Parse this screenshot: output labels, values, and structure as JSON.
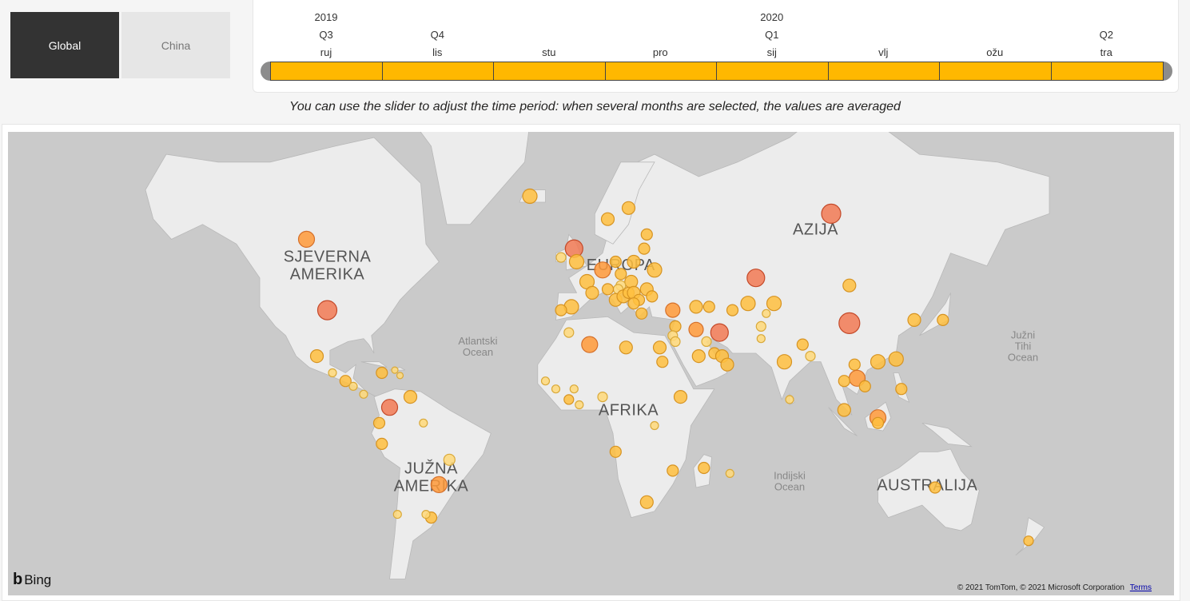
{
  "filters": {
    "global_label": "Global",
    "china_label": "China",
    "selected": "Global"
  },
  "timeline": {
    "years": [
      {
        "label": "2019",
        "month_index": 0
      },
      {
        "label": "2020",
        "month_index": 4
      }
    ],
    "quarters": [
      {
        "label": "Q3",
        "month_index": 0
      },
      {
        "label": "Q4",
        "month_index": 1
      },
      {
        "label": "Q1",
        "month_index": 4
      },
      {
        "label": "Q2",
        "month_index": 7
      }
    ],
    "months": [
      "ruj",
      "lis",
      "stu",
      "pro",
      "sij",
      "vlj",
      "ožu",
      "tra"
    ],
    "selected_range": [
      "ruj",
      "tra"
    ],
    "accent_color": "#ffb800"
  },
  "hint": "You can use the slider to adjust the time period: when several months are selected, the values are averaged",
  "map": {
    "continents": [
      {
        "label_lines": [
          "SJEVERNA",
          "AMERIKA"
        ],
        "lon": -98,
        "lat": 52
      },
      {
        "label_lines": [
          "EUROPA"
        ],
        "lon": 15,
        "lat": 50
      },
      {
        "label_lines": [
          "AZIJA"
        ],
        "lon": 90,
        "lat": 58
      },
      {
        "label_lines": [
          "AFRIKA"
        ],
        "lon": 18,
        "lat": 2
      },
      {
        "label_lines": [
          "JUŽNA",
          "AMERIKA"
        ],
        "lon": -58,
        "lat": -20
      },
      {
        "label_lines": [
          "AUSTRALIJA"
        ],
        "lon": 133,
        "lat": -26
      }
    ],
    "oceans": [
      {
        "label_lines": [
          "Atlantski",
          "Ocean"
        ],
        "lon": -40,
        "lat": 28
      },
      {
        "label_lines": [
          "Južni",
          "Tihi",
          "Ocean"
        ],
        "lon": -180,
        "lat": 30
      },
      {
        "label_lines": [
          "Indijski",
          "Ocean"
        ],
        "lon": 80,
        "lat": -22
      }
    ],
    "bubbles": [
      {
        "lon": -106,
        "lat": 57,
        "level": 2,
        "size": 10
      },
      {
        "lon": -98,
        "lat": 39,
        "level": 3,
        "size": 12
      },
      {
        "lon": -102,
        "lat": 24,
        "level": 1,
        "size": 8
      },
      {
        "lon": -96,
        "lat": 18,
        "level": 0,
        "size": 5
      },
      {
        "lon": -91,
        "lat": 15,
        "level": 1,
        "size": 7
      },
      {
        "lon": -88,
        "lat": 13,
        "level": 0,
        "size": 5
      },
      {
        "lon": -84,
        "lat": 10,
        "level": 0,
        "size": 5
      },
      {
        "lon": -77,
        "lat": 18,
        "level": 1,
        "size": 7
      },
      {
        "lon": -72,
        "lat": 19,
        "level": 0,
        "size": 4
      },
      {
        "lon": -70,
        "lat": 17,
        "level": 0,
        "size": 4
      },
      {
        "lon": -66,
        "lat": 9,
        "level": 1,
        "size": 8
      },
      {
        "lon": -74,
        "lat": 5,
        "level": 3,
        "size": 10
      },
      {
        "lon": -78,
        "lat": -1,
        "level": 1,
        "size": 7
      },
      {
        "lon": -77,
        "lat": -9,
        "level": 1,
        "size": 7
      },
      {
        "lon": -61,
        "lat": -1,
        "level": 0,
        "size": 5
      },
      {
        "lon": -51,
        "lat": -15,
        "level": 0,
        "size": 7
      },
      {
        "lon": -55,
        "lat": -24,
        "level": 2,
        "size": 10
      },
      {
        "lon": -58,
        "lat": -35,
        "level": 1,
        "size": 7
      },
      {
        "lon": -71,
        "lat": -34,
        "level": 0,
        "size": 5
      },
      {
        "lon": -60,
        "lat": -34,
        "level": 0,
        "size": 5
      },
      {
        "lon": -20,
        "lat": 65,
        "level": 1,
        "size": 9
      },
      {
        "lon": -3,
        "lat": 55,
        "level": 3,
        "size": 11
      },
      {
        "lon": 10,
        "lat": 61,
        "level": 1,
        "size": 8
      },
      {
        "lon": 18,
        "lat": 63,
        "level": 1,
        "size": 8
      },
      {
        "lon": -8,
        "lat": 53,
        "level": 0,
        "size": 6
      },
      {
        "lon": -2,
        "lat": 52,
        "level": 1,
        "size": 9
      },
      {
        "lon": 2,
        "lat": 47,
        "level": 1,
        "size": 9
      },
      {
        "lon": 8,
        "lat": 50,
        "level": 2,
        "size": 10
      },
      {
        "lon": 13,
        "lat": 52,
        "level": 1,
        "size": 7
      },
      {
        "lon": 20,
        "lat": 52,
        "level": 1,
        "size": 8
      },
      {
        "lon": 25,
        "lat": 58,
        "level": 1,
        "size": 7
      },
      {
        "lon": 24,
        "lat": 55,
        "level": 1,
        "size": 7
      },
      {
        "lon": 28,
        "lat": 50,
        "level": 1,
        "size": 9
      },
      {
        "lon": 19,
        "lat": 47,
        "level": 1,
        "size": 8
      },
      {
        "lon": 15,
        "lat": 49,
        "level": 1,
        "size": 7
      },
      {
        "lon": 15,
        "lat": 46,
        "level": 0,
        "size": 6
      },
      {
        "lon": 14,
        "lat": 45,
        "level": 0,
        "size": 6
      },
      {
        "lon": 10,
        "lat": 45,
        "level": 1,
        "size": 7
      },
      {
        "lon": 4,
        "lat": 44,
        "level": 1,
        "size": 8
      },
      {
        "lon": -4,
        "lat": 40,
        "level": 1,
        "size": 9
      },
      {
        "lon": -8,
        "lat": 39,
        "level": 1,
        "size": 7
      },
      {
        "lon": 13,
        "lat": 42,
        "level": 1,
        "size": 8
      },
      {
        "lon": 16,
        "lat": 43,
        "level": 1,
        "size": 8
      },
      {
        "lon": 18,
        "lat": 44,
        "level": 1,
        "size": 7
      },
      {
        "lon": 20,
        "lat": 44,
        "level": 1,
        "size": 8
      },
      {
        "lon": 22,
        "lat": 42,
        "level": 1,
        "size": 7
      },
      {
        "lon": 25,
        "lat": 45,
        "level": 1,
        "size": 8
      },
      {
        "lon": 27,
        "lat": 43,
        "level": 1,
        "size": 7
      },
      {
        "lon": 23,
        "lat": 38,
        "level": 1,
        "size": 7
      },
      {
        "lon": 20,
        "lat": 41,
        "level": 1,
        "size": 7
      },
      {
        "lon": 35,
        "lat": 39,
        "level": 2,
        "size": 9
      },
      {
        "lon": 44,
        "lat": 40,
        "level": 1,
        "size": 8
      },
      {
        "lon": 49,
        "lat": 40,
        "level": 1,
        "size": 7
      },
      {
        "lon": 36,
        "lat": 34,
        "level": 1,
        "size": 7
      },
      {
        "lon": 35,
        "lat": 31,
        "level": 0,
        "size": 6
      },
      {
        "lon": 36,
        "lat": 29,
        "level": 0,
        "size": 6
      },
      {
        "lon": 44,
        "lat": 33,
        "level": 2,
        "size": 9
      },
      {
        "lon": 53,
        "lat": 32,
        "level": 3,
        "size": 11
      },
      {
        "lon": 48,
        "lat": 29,
        "level": 0,
        "size": 6
      },
      {
        "lon": 45,
        "lat": 24,
        "level": 1,
        "size": 8
      },
      {
        "lon": 51,
        "lat": 25,
        "level": 1,
        "size": 7
      },
      {
        "lon": 54,
        "lat": 24,
        "level": 1,
        "size": 8
      },
      {
        "lon": 56,
        "lat": 21,
        "level": 1,
        "size": 8
      },
      {
        "lon": 67,
        "lat": 48,
        "level": 3,
        "size": 11
      },
      {
        "lon": 64,
        "lat": 41,
        "level": 1,
        "size": 9
      },
      {
        "lon": 58,
        "lat": 39,
        "level": 1,
        "size": 7
      },
      {
        "lon": 74,
        "lat": 41,
        "level": 1,
        "size": 9
      },
      {
        "lon": 69,
        "lat": 34,
        "level": 0,
        "size": 6
      },
      {
        "lon": 69,
        "lat": 30,
        "level": 0,
        "size": 5
      },
      {
        "lon": 71,
        "lat": 38,
        "level": 0,
        "size": 5
      },
      {
        "lon": 78,
        "lat": 22,
        "level": 1,
        "size": 9
      },
      {
        "lon": 80,
        "lat": 8,
        "level": 0,
        "size": 5
      },
      {
        "lon": 85,
        "lat": 28,
        "level": 1,
        "size": 7
      },
      {
        "lon": 88,
        "lat": 24,
        "level": 0,
        "size": 6
      },
      {
        "lon": 96,
        "lat": 62,
        "level": 3,
        "size": 12
      },
      {
        "lon": 103,
        "lat": 46,
        "level": 1,
        "size": 8
      },
      {
        "lon": 103,
        "lat": 35,
        "level": 3,
        "size": 13
      },
      {
        "lon": 114,
        "lat": 22,
        "level": 1,
        "size": 9
      },
      {
        "lon": 121,
        "lat": 23,
        "level": 1,
        "size": 9
      },
      {
        "lon": 105,
        "lat": 21,
        "level": 1,
        "size": 7
      },
      {
        "lon": 106,
        "lat": 16,
        "level": 2,
        "size": 10
      },
      {
        "lon": 101,
        "lat": 15,
        "level": 1,
        "size": 7
      },
      {
        "lon": 109,
        "lat": 13,
        "level": 1,
        "size": 7
      },
      {
        "lon": 123,
        "lat": 12,
        "level": 1,
        "size": 7
      },
      {
        "lon": 101,
        "lat": 4,
        "level": 1,
        "size": 8
      },
      {
        "lon": 114,
        "lat": 1,
        "level": 2,
        "size": 10
      },
      {
        "lon": 114,
        "lat": -1,
        "level": 1,
        "size": 7
      },
      {
        "lon": 128,
        "lat": 36,
        "level": 1,
        "size": 8
      },
      {
        "lon": 139,
        "lat": 36,
        "level": 1,
        "size": 7
      },
      {
        "lon": 136,
        "lat": -25,
        "level": 1,
        "size": 7
      },
      {
        "lon": 172,
        "lat": -42,
        "level": 1,
        "size": 6
      },
      {
        "lon": -5,
        "lat": 32,
        "level": 0,
        "size": 6
      },
      {
        "lon": 3,
        "lat": 28,
        "level": 2,
        "size": 10
      },
      {
        "lon": 17,
        "lat": 27,
        "level": 1,
        "size": 8
      },
      {
        "lon": 30,
        "lat": 27,
        "level": 1,
        "size": 8
      },
      {
        "lon": 31,
        "lat": 22,
        "level": 1,
        "size": 7
      },
      {
        "lon": -14,
        "lat": 15,
        "level": 0,
        "size": 5
      },
      {
        "lon": -10,
        "lat": 12,
        "level": 0,
        "size": 5
      },
      {
        "lon": -5,
        "lat": 8,
        "level": 1,
        "size": 6
      },
      {
        "lon": -3,
        "lat": 12,
        "level": 0,
        "size": 5
      },
      {
        "lon": 8,
        "lat": 9,
        "level": 0,
        "size": 6
      },
      {
        "lon": -1,
        "lat": 6,
        "level": 0,
        "size": 5
      },
      {
        "lon": 38,
        "lat": 9,
        "level": 1,
        "size": 8
      },
      {
        "lon": 13,
        "lat": -12,
        "level": 1,
        "size": 7
      },
      {
        "lon": 28,
        "lat": -2,
        "level": 0,
        "size": 5
      },
      {
        "lon": 35,
        "lat": -19,
        "level": 1,
        "size": 7
      },
      {
        "lon": 25,
        "lat": -30,
        "level": 1,
        "size": 8
      },
      {
        "lon": 47,
        "lat": -18,
        "level": 1,
        "size": 7
      },
      {
        "lon": 57,
        "lat": -20,
        "level": 0,
        "size": 5
      }
    ],
    "level_colors": [
      "#ffd97a",
      "#ffbf3f",
      "#ff9a3a",
      "#f27a55"
    ],
    "level_strokes": [
      "#d9a93a",
      "#d69322",
      "#d5702a",
      "#c44a2a"
    ]
  },
  "bing_label": "Bing",
  "copyright": "© 2021 TomTom, © 2021 Microsoft Corporation",
  "terms_label": "Terms"
}
